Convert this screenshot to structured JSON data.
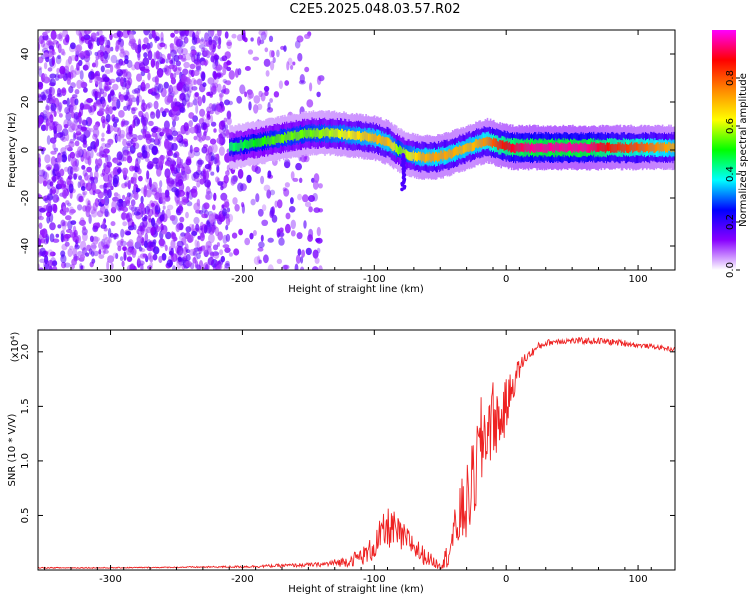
{
  "title": "C2E5.2025.048.03.57.R02",
  "chart_data": [
    {
      "type": "heatmap",
      "xlabel": "Height of straight line (km)",
      "ylabel": "Frequency (Hz)",
      "xlim": [
        -355,
        128
      ],
      "ylim": [
        -50,
        50
      ],
      "xticks": [
        -300,
        -200,
        -100,
        0,
        100
      ],
      "yticks": [
        -40,
        -20,
        0,
        20,
        40
      ],
      "colorbar": {
        "label": "Normalized spectral amplitude",
        "range": [
          0,
          1
        ],
        "ticks": [
          "0.0",
          "0.2",
          "0.4",
          "0.6",
          "0.8"
        ],
        "colors": [
          "#ffffff",
          "#8800ff",
          "#0000ff",
          "#00ffff",
          "#00ff00",
          "#ffff00",
          "#ff8800",
          "#ff0000",
          "#ff00ff"
        ]
      },
      "ridge": {
        "x": [
          -210,
          -190,
          -170,
          -150,
          -130,
          -115,
          -100,
          -90,
          -82,
          -75,
          -65,
          -55,
          -45,
          -35,
          -25,
          -15,
          -5,
          5,
          20,
          40,
          60,
          80,
          100,
          128
        ],
        "y": [
          1,
          3,
          5,
          7,
          7,
          6,
          5,
          3,
          0,
          -2,
          -3,
          -3,
          -2,
          0,
          2,
          4,
          2,
          1,
          1,
          1,
          1,
          1,
          1,
          1
        ],
        "amplitude": [
          0.45,
          0.5,
          0.55,
          0.55,
          0.6,
          0.65,
          0.7,
          0.7,
          0.55,
          0.6,
          0.7,
          0.72,
          0.72,
          0.7,
          0.7,
          0.75,
          0.85,
          0.9,
          0.95,
          0.95,
          0.95,
          0.85,
          0.8,
          0.7
        ]
      },
      "noise_region": {
        "x_from": -355,
        "x_to": -140,
        "dense_to": -210,
        "amplitude": 0.12
      }
    },
    {
      "type": "line",
      "xlabel": "Height of straight line (km)",
      "ylabel": "SNR (10 * V/V)",
      "y_multiplier": "(x10⁴)",
      "xlim": [
        -355,
        128
      ],
      "ylim": [
        0,
        2.2
      ],
      "xticks": [
        -300,
        -200,
        -100,
        0,
        100
      ],
      "yticks": [
        0.5,
        1.0,
        1.5,
        2.0
      ],
      "color": "#ee2222",
      "series": [
        {
          "x": [
            -355,
            -300,
            -250,
            -200,
            -170,
            -140,
            -120,
            -105,
            -95,
            -88,
            -80,
            -72,
            -65,
            -58,
            -52,
            -46,
            -40,
            -35,
            -30,
            -25,
            -20,
            -15,
            -10,
            -5,
            0,
            5,
            10,
            15,
            20,
            25,
            30,
            40,
            50,
            60,
            70,
            80,
            90,
            100,
            110,
            128
          ],
          "y": [
            0.02,
            0.02,
            0.025,
            0.03,
            0.04,
            0.05,
            0.08,
            0.15,
            0.3,
            0.4,
            0.3,
            0.25,
            0.15,
            0.1,
            0.05,
            0.1,
            0.3,
            0.5,
            0.6,
            0.8,
            1.1,
            1.3,
            1.4,
            1.35,
            1.5,
            1.7,
            1.85,
            1.95,
            2.0,
            2.05,
            2.08,
            2.1,
            2.1,
            2.1,
            2.1,
            2.09,
            2.08,
            2.06,
            2.05,
            2.02
          ],
          "noise": [
            0.005,
            0.005,
            0.005,
            0.01,
            0.015,
            0.02,
            0.05,
            0.1,
            0.18,
            0.2,
            0.15,
            0.12,
            0.1,
            0.06,
            0.05,
            0.1,
            0.2,
            0.3,
            0.35,
            0.4,
            0.45,
            0.45,
            0.35,
            0.3,
            0.25,
            0.15,
            0.1,
            0.05,
            0.04,
            0.04,
            0.03,
            0.03,
            0.03,
            0.03,
            0.03,
            0.03,
            0.03,
            0.02,
            0.02,
            0.02
          ]
        }
      ]
    }
  ]
}
